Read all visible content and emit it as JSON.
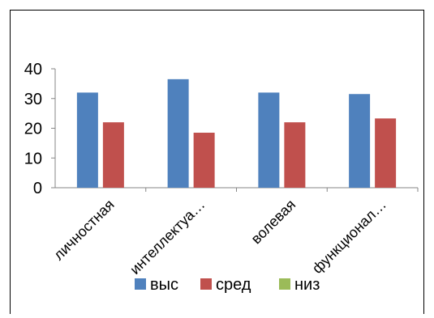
{
  "chart_data": {
    "type": "bar",
    "title": "",
    "xlabel": "",
    "ylabel": "",
    "categories": [
      "личностная",
      "интеллектуа…",
      "волевая",
      "функционал…"
    ],
    "series": [
      {
        "name": "выс",
        "color": "#4F81BD",
        "values": [
          32,
          36.5,
          32,
          31.5
        ]
      },
      {
        "name": "сред",
        "color": "#C0504D",
        "values": [
          22,
          18.5,
          22,
          23.3
        ]
      },
      {
        "name": "низ",
        "color": "#9BBB59",
        "values": [
          0,
          0,
          0,
          0
        ]
      }
    ],
    "ylim": [
      0,
      40
    ],
    "yticks": [
      0,
      10,
      20,
      30,
      40
    ],
    "grid": false,
    "legend_position": "bottom"
  }
}
